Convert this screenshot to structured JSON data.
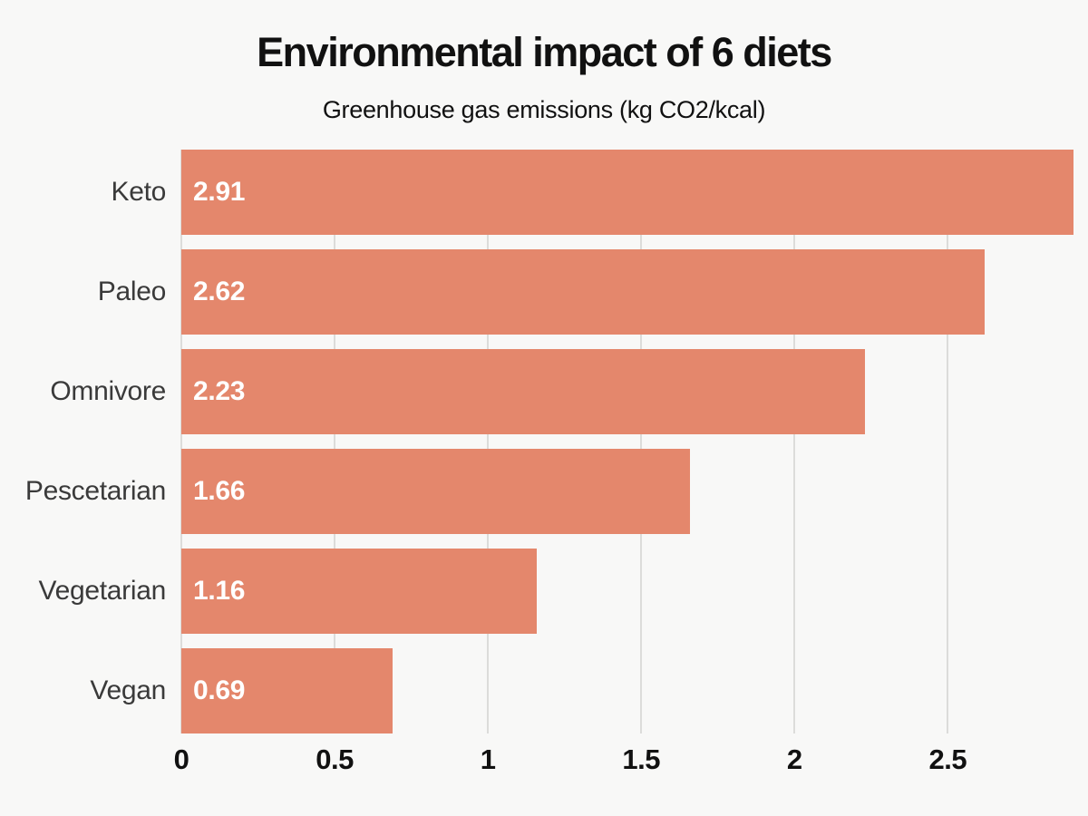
{
  "header": {
    "title": "Environmental impact of 6 diets",
    "subtitle": "Greenhouse gas emissions (kg CO2/kcal)"
  },
  "chart_data": {
    "type": "bar",
    "orientation": "horizontal",
    "title": "Environmental impact of 6 diets",
    "subtitle": "Greenhouse gas emissions (kg CO2/kcal)",
    "categories": [
      "Keto",
      "Paleo",
      "Omnivore",
      "Pescetarian",
      "Vegetarian",
      "Vegan"
    ],
    "values": [
      2.91,
      2.62,
      2.23,
      1.66,
      1.16,
      0.69
    ],
    "value_labels": [
      "2.91",
      "2.62",
      "2.23",
      "1.66",
      "1.16",
      "0.69"
    ],
    "xlabel": "",
    "ylabel": "",
    "xlim": [
      0,
      2.91
    ],
    "xticks": [
      0,
      0.5,
      1,
      1.5,
      2,
      2.5
    ],
    "xtick_labels": [
      "0",
      "0.5",
      "1",
      "1.5",
      "2",
      "2.5"
    ],
    "grid": true,
    "legend": false,
    "colors": {
      "bar": "#E4876C",
      "background": "#F8F8F7",
      "gridline": "#DCDCDA",
      "title": "#111111",
      "category_label": "#3A3A3A",
      "value_label": "#FFFFFF",
      "tick_label": "#111111"
    }
  }
}
